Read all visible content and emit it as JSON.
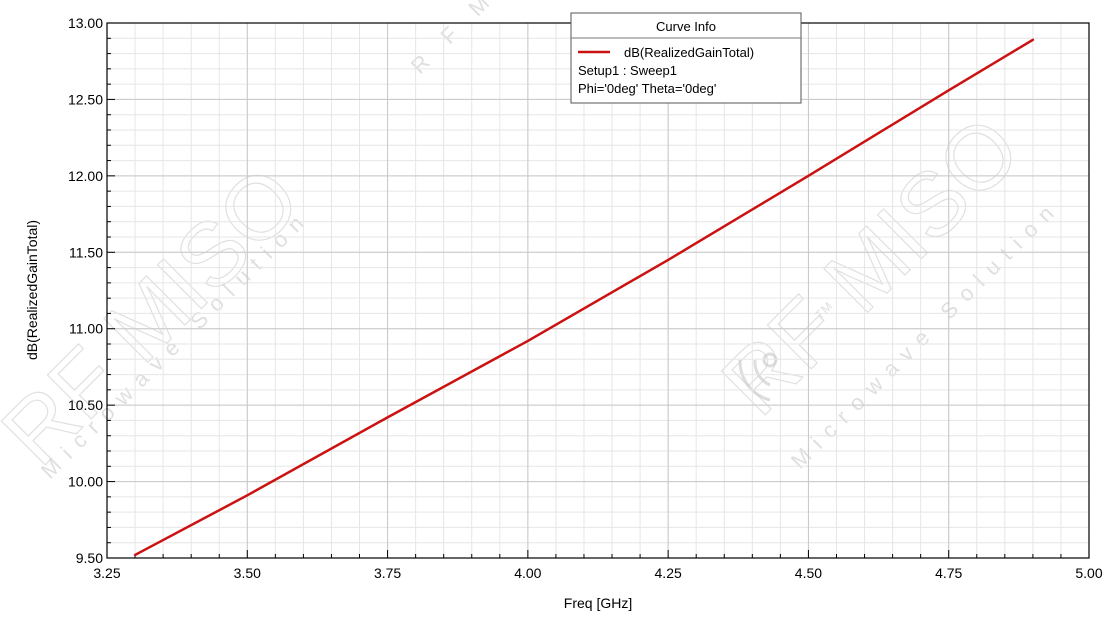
{
  "chart_data": {
    "type": "line",
    "xlabel": "Freq [GHz]",
    "ylabel": "dB(RealizedGainTotal)",
    "xlim": [
      3.25,
      5.0
    ],
    "ylim": [
      9.5,
      13.0
    ],
    "x_ticks": [
      "3.25",
      "3.50",
      "3.75",
      "4.00",
      "4.25",
      "4.50",
      "4.75",
      "5.00"
    ],
    "x_tick_values": [
      3.25,
      3.5,
      3.75,
      4.0,
      4.25,
      4.5,
      4.75,
      5.0
    ],
    "y_ticks": [
      "9.50",
      "10.00",
      "10.50",
      "11.00",
      "11.50",
      "12.00",
      "12.50",
      "13.00"
    ],
    "y_tick_values": [
      9.5,
      10.0,
      10.5,
      11.0,
      11.5,
      12.0,
      12.5,
      13.0
    ],
    "grid": true,
    "legend": {
      "title": "Curve Info",
      "placement": "top-center",
      "lines": [
        "Setup1 : Sweep1",
        "Phi='0deg' Theta='0deg'"
      ]
    },
    "series": [
      {
        "name": "dB(RealizedGainTotal)",
        "color": "#cc1111",
        "x": [
          3.3,
          3.5,
          3.75,
          4.0,
          4.25,
          4.5,
          4.75,
          4.9
        ],
        "y": [
          9.52,
          9.91,
          10.42,
          10.92,
          11.45,
          12.0,
          12.56,
          12.89
        ]
      }
    ]
  },
  "watermark": {
    "brand": "RF MISO",
    "tagline": "Microwave Solution",
    "short": "R F M",
    "tm": "TM"
  },
  "colors": {
    "grid_major": "#c8c8c8",
    "grid_minor": "#e6e6e6",
    "axis": "#000000",
    "series": "#cc1111"
  }
}
